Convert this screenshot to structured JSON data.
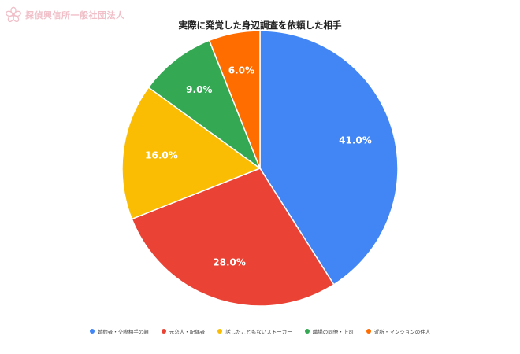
{
  "watermark": {
    "text": "探偵興信所一般社団法人",
    "icon": "cherry-blossom-logo"
  },
  "colors": {
    "blue": "#4285f4",
    "red": "#ea4335",
    "yellow": "#fbbc04",
    "green": "#34a853",
    "orange": "#ff6d01"
  },
  "chart_data": {
    "type": "pie",
    "title": "実際に発覚した身辺調査を依頼した相手",
    "legend_position": "bottom",
    "slices": [
      {
        "name": "婚約者・交際相手の親",
        "value": 41.0,
        "label": "41.0%",
        "color": "#4285f4"
      },
      {
        "name": "元恋人・配偶者",
        "value": 28.0,
        "label": "28.0%",
        "color": "#ea4335"
      },
      {
        "name": "話したこともないストーカー",
        "value": 16.0,
        "label": "16.0%",
        "color": "#fbbc04"
      },
      {
        "name": "職場の同僚・上司",
        "value": 9.0,
        "label": "9.0%",
        "color": "#34a853"
      },
      {
        "name": "近所・マンションの住人",
        "value": 6.0,
        "label": "6.0%",
        "color": "#ff6d01"
      }
    ]
  }
}
